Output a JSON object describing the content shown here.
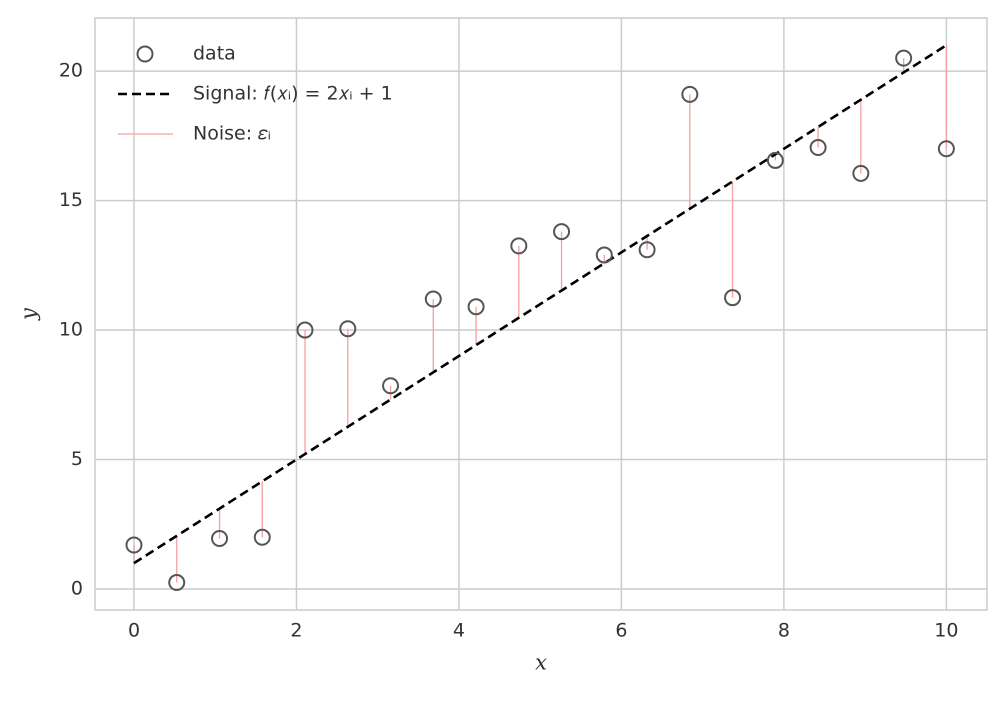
{
  "chart_data": {
    "type": "scatter",
    "xlabel": "x",
    "ylabel": "y",
    "x": [
      0,
      0.526,
      1.053,
      1.579,
      2.105,
      2.632,
      3.158,
      3.684,
      4.211,
      4.737,
      5.263,
      5.789,
      6.316,
      6.842,
      7.368,
      7.895,
      8.421,
      8.947,
      9.474,
      10
    ],
    "series": [
      {
        "name": "data",
        "color": "#555555",
        "values": [
          1.7,
          0.25,
          1.95,
          2.0,
          10.0,
          10.05,
          7.85,
          11.2,
          10.9,
          13.25,
          13.8,
          12.9,
          13.1,
          19.1,
          11.25,
          16.55,
          17.05,
          16.05,
          20.5,
          17.0
        ]
      },
      {
        "name": "Signal: 𝑓(𝑥ᵢ) = 2𝑥ᵢ + 1",
        "color": "#000000",
        "values": [
          1,
          2.053,
          3.105,
          4.158,
          5.211,
          6.263,
          7.316,
          8.368,
          9.421,
          10.474,
          11.526,
          12.579,
          13.632,
          14.684,
          15.737,
          16.789,
          17.842,
          18.895,
          19.947,
          21
        ]
      }
    ],
    "noise": {
      "name": "Noise: 𝜀ᵢ",
      "color": "#f4a0a0"
    },
    "xlim": [
      -0.48,
      10.5
    ],
    "ylim": [
      -0.81,
      22.05
    ],
    "xticks": [
      0,
      2,
      4,
      6,
      8,
      10
    ],
    "yticks": [
      0,
      5,
      10,
      15,
      20
    ],
    "grid": true,
    "legend": "upper left"
  }
}
